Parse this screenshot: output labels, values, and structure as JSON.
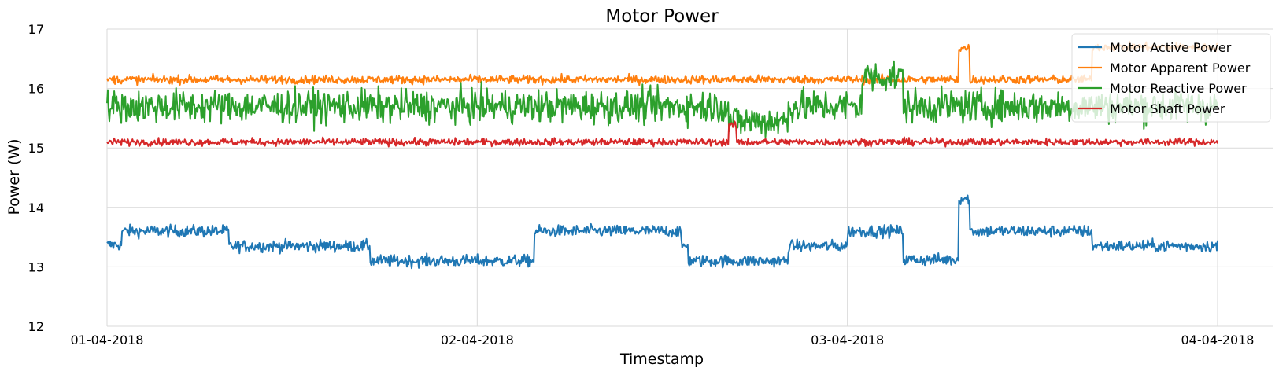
{
  "chart_data": {
    "type": "line",
    "title": "Motor Power",
    "xlabel": "Timestamp",
    "ylabel": "Power (W)",
    "x_ticks": [
      "01-04-2018",
      "02-04-2018",
      "03-04-2018",
      "04-04-2018"
    ],
    "x_range_days": [
      0,
      3
    ],
    "y_ticks": [
      "12",
      "13",
      "14",
      "15",
      "16",
      "17"
    ],
    "ylim": [
      12,
      17
    ],
    "grid": true,
    "legend_position": "top-right",
    "series": [
      {
        "name": "Motor Active Power",
        "color": "#1f77b4",
        "noise": 0.05,
        "segments": [
          {
            "start": 0.0,
            "end": 0.04,
            "value": 13.37
          },
          {
            "start": 0.04,
            "end": 0.33,
            "value": 13.6
          },
          {
            "start": 0.33,
            "end": 0.71,
            "value": 13.35
          },
          {
            "start": 0.71,
            "end": 1.155,
            "value": 13.1
          },
          {
            "start": 1.155,
            "end": 1.55,
            "value": 13.6
          },
          {
            "start": 1.55,
            "end": 1.57,
            "value": 13.35
          },
          {
            "start": 1.57,
            "end": 1.84,
            "value": 13.1
          },
          {
            "start": 1.84,
            "end": 2.0,
            "value": 13.35
          },
          {
            "start": 2.0,
            "end": 2.15,
            "value": 13.6
          },
          {
            "start": 2.15,
            "end": 2.3,
            "value": 13.12
          },
          {
            "start": 2.3,
            "end": 2.33,
            "value": 14.15
          },
          {
            "start": 2.33,
            "end": 2.66,
            "value": 13.6
          },
          {
            "start": 2.66,
            "end": 3.0,
            "value": 13.35
          }
        ]
      },
      {
        "name": "Motor Apparent Power",
        "color": "#ff7f0e",
        "noise": 0.035,
        "segments": [
          {
            "start": 0.0,
            "end": 2.3,
            "value": 16.15
          },
          {
            "start": 2.3,
            "end": 2.33,
            "value": 16.68
          },
          {
            "start": 2.33,
            "end": 2.66,
            "value": 16.15
          },
          {
            "start": 2.66,
            "end": 3.0,
            "value": 16.7
          }
        ]
      },
      {
        "name": "Motor Reactive Power",
        "color": "#2ca02c",
        "noise": 0.14,
        "segments": [
          {
            "start": 0.0,
            "end": 1.68,
            "value": 15.7
          },
          {
            "start": 1.68,
            "end": 1.84,
            "value": 15.45
          },
          {
            "start": 1.84,
            "end": 2.04,
            "value": 15.7
          },
          {
            "start": 2.04,
            "end": 2.15,
            "value": 16.2
          },
          {
            "start": 2.15,
            "end": 3.0,
            "value": 15.7
          }
        ]
      },
      {
        "name": "Motor Shaft Power",
        "color": "#d62728",
        "noise": 0.03,
        "segments": [
          {
            "start": 0.0,
            "end": 1.68,
            "value": 15.1
          },
          {
            "start": 1.68,
            "end": 1.7,
            "value": 15.38
          },
          {
            "start": 1.7,
            "end": 3.0,
            "value": 15.1
          }
        ]
      }
    ]
  }
}
